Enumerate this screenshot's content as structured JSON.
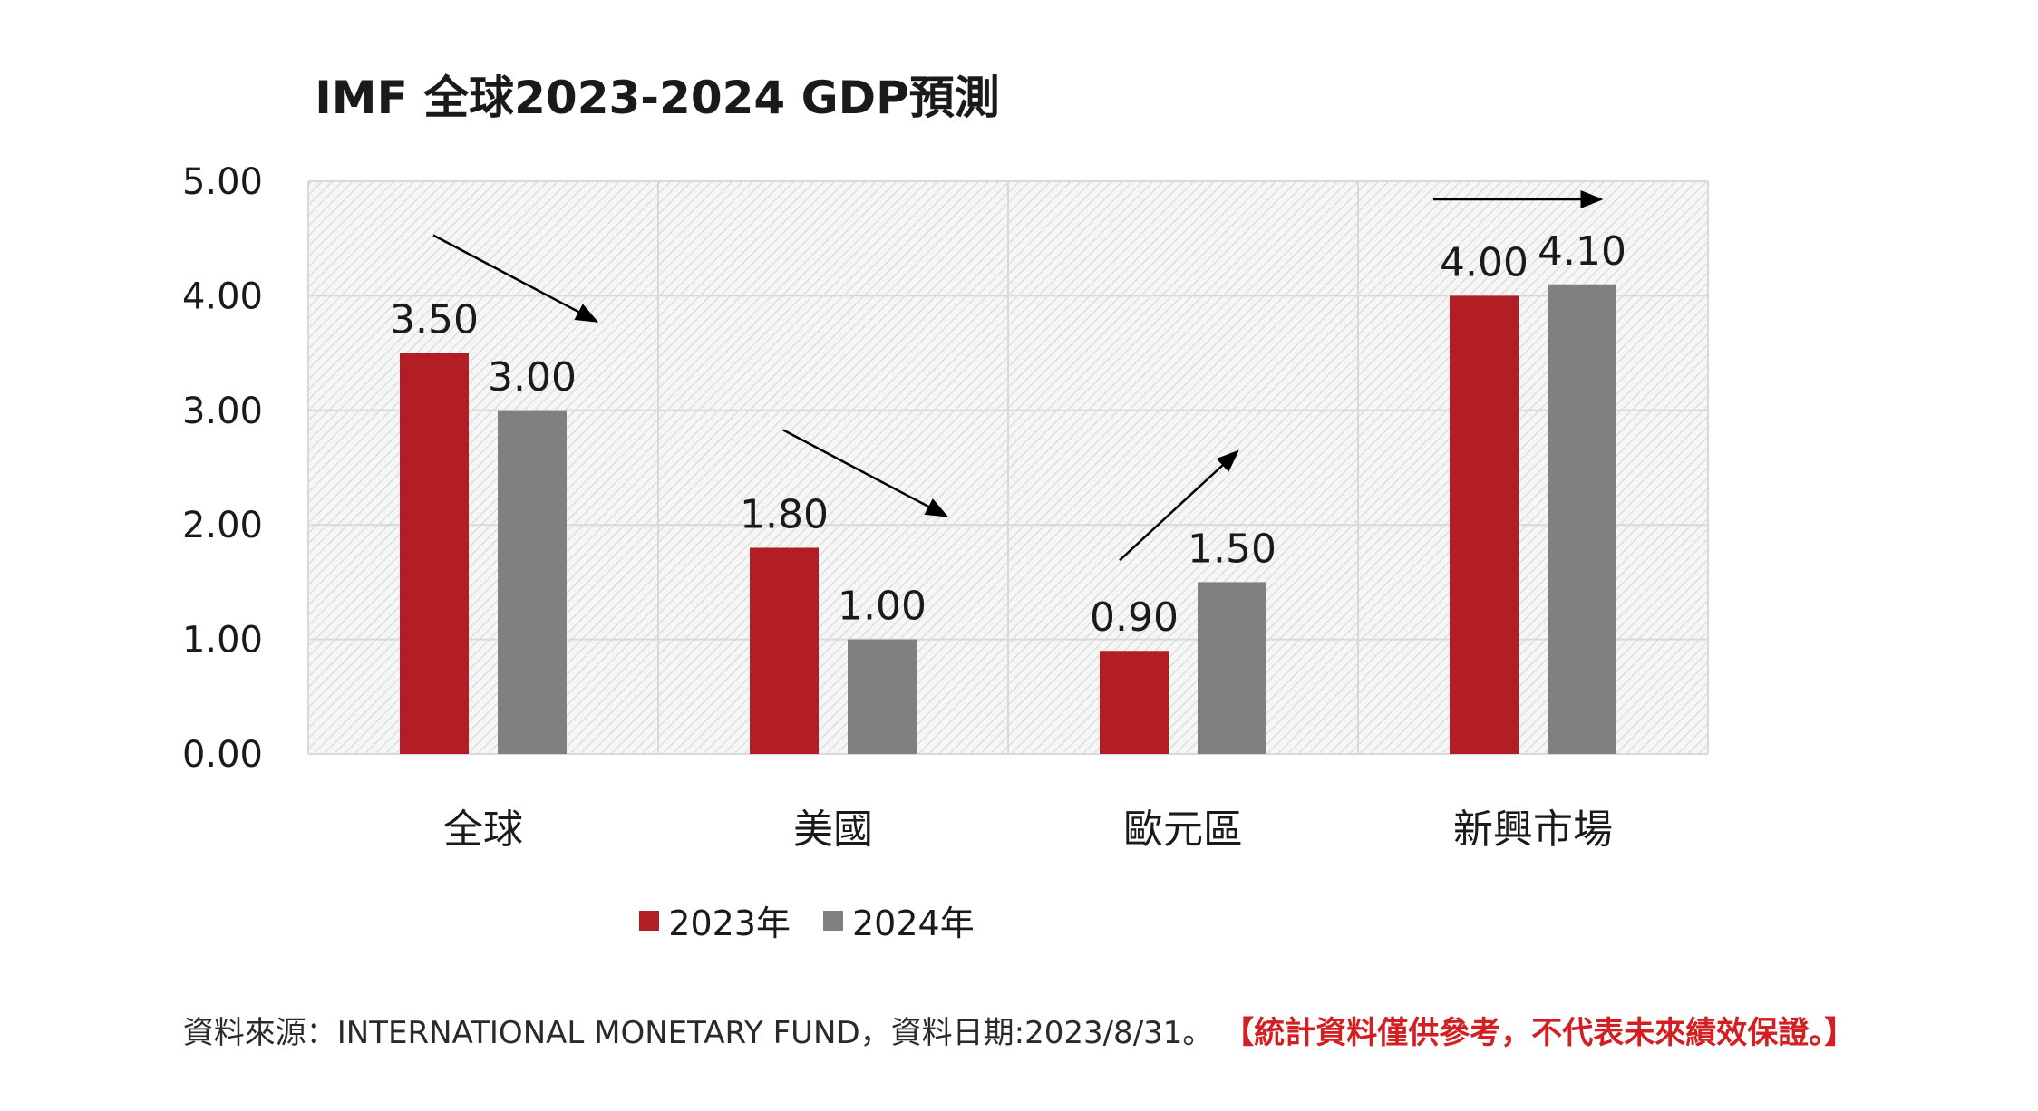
{
  "colors": {
    "series2023": "#b31e25",
    "series2024": "#808080",
    "disclaimer": "#d41f22"
  },
  "chart_data": {
    "type": "bar",
    "title": "IMF 全球2023-2024 GDP預測",
    "categories": [
      "全球",
      "美國",
      "歐元區",
      "新興市場"
    ],
    "series": [
      {
        "name": "2023年",
        "values": [
          3.5,
          1.8,
          0.9,
          4.0
        ]
      },
      {
        "name": "2024年",
        "values": [
          3.0,
          1.0,
          1.5,
          4.1
        ]
      }
    ],
    "data_labels": [
      [
        "3.50",
        "1.80",
        "0.90",
        "4.00"
      ],
      [
        "3.00",
        "1.00",
        "1.50",
        "4.10"
      ]
    ],
    "ylim": [
      0,
      5
    ],
    "yticks": [
      0,
      1,
      2,
      3,
      4,
      5
    ],
    "ytick_labels": [
      "0.00",
      "1.00",
      "2.00",
      "3.00",
      "4.00",
      "5.00"
    ],
    "xlabel": "",
    "ylabel": "",
    "grid": true,
    "legend": "bottom-center",
    "trend_arrows": [
      "down",
      "down",
      "up",
      "flat"
    ]
  },
  "footer": {
    "source": "資料來源：INTERNATIONAL MONETARY FUND，資料日期:2023/8/31。",
    "disclaimer": "【統計資料僅供參考，不代表未來績效保證。】"
  }
}
